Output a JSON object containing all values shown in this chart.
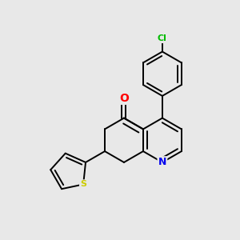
{
  "background_color": "#e8e8e8",
  "bond_color": "#000000",
  "atom_colors": {
    "O": "#ff0000",
    "N": "#0000ee",
    "S": "#cccc00",
    "Cl": "#00bb00",
    "C": "#000000"
  },
  "line_width": 1.4,
  "figsize": [
    3.0,
    3.0
  ],
  "dpi": 100
}
